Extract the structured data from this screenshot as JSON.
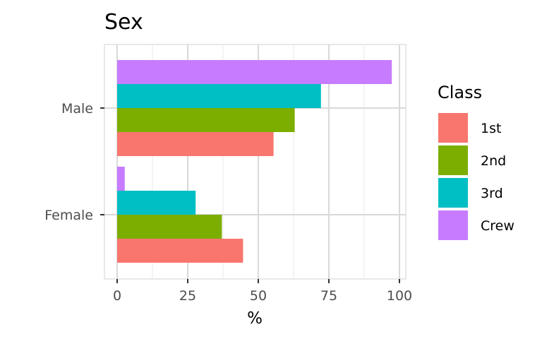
{
  "chart_data": {
    "type": "bar",
    "orientation": "horizontal",
    "title": "Sex",
    "xlabel": "%",
    "ylabel": "",
    "xlim": [
      0,
      100
    ],
    "x_ticks": [
      "0",
      "25",
      "50",
      "75",
      "100"
    ],
    "categories": [
      "Male",
      "Female"
    ],
    "series": [
      {
        "name": "1st",
        "color": "#F8766D",
        "values": [
          55.4,
          44.6
        ]
      },
      {
        "name": "2nd",
        "color": "#7CAE00",
        "values": [
          62.9,
          37.1
        ]
      },
      {
        "name": "3rd",
        "color": "#00BFC4",
        "values": [
          72.2,
          27.8
        ]
      },
      {
        "name": "Crew",
        "color": "#C77CFF",
        "values": [
          97.3,
          2.7
        ]
      }
    ],
    "legend": {
      "title": "Class",
      "placement": "right"
    },
    "grid": true
  }
}
